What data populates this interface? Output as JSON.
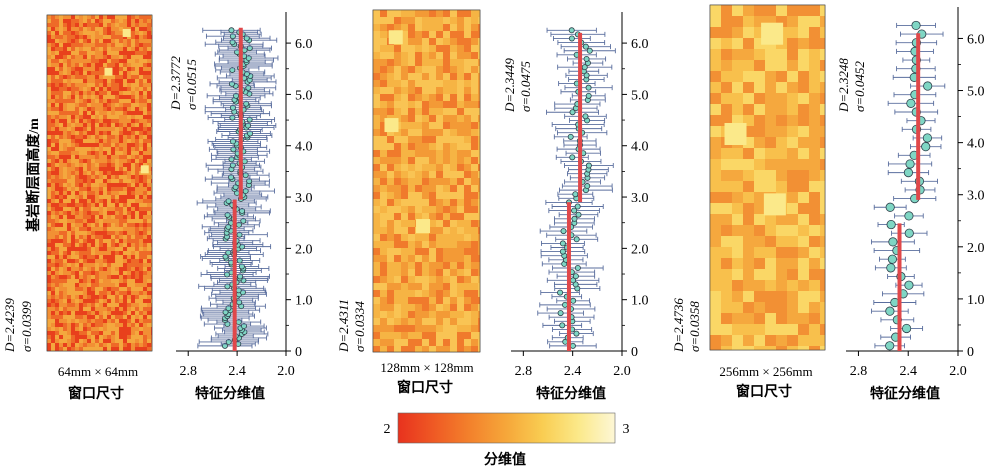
{
  "shared": {
    "y_axis_label": "基岩断层面高度/m",
    "x_axis_label": "特征分维值",
    "window_caption": "窗口尺寸",
    "x_ticks": [
      "2.8",
      "2.4",
      "2.0"
    ],
    "y_ticks": [
      "0",
      "1.0",
      "2.0",
      "3.0",
      "4.0",
      "5.0",
      "6.0"
    ]
  },
  "colorbar": {
    "min_label": "2",
    "max_label": "3",
    "title": "分维值",
    "colors": [
      "#e8321e",
      "#ef5a24",
      "#f3822c",
      "#f6a73a",
      "#f9cd52",
      "#fbe98a",
      "#fdf7d6"
    ]
  },
  "chart_data": [
    {
      "type": "scatter",
      "window_size": "64mm × 64mm",
      "map_D": "D=2.4239",
      "map_sigma": "σ=0.0399",
      "upper_D": "D=2.3772",
      "upper_sigma": "σ=0.0515",
      "xlim": [
        2.9,
        2.0
      ],
      "ylim": [
        0,
        6.45
      ],
      "mean_lower": {
        "value": 2.42,
        "y_range": [
          0,
          2.95
        ]
      },
      "mean_upper": {
        "value": 2.37,
        "y_range": [
          2.95,
          6.3
        ]
      },
      "point_count": 160,
      "error_bar": 0.22,
      "map_colors": [
        "#e8401c",
        "#ee6a28",
        "#f29034",
        "#f4a83e"
      ]
    },
    {
      "type": "scatter",
      "window_size": "128mm × 128mm",
      "map_D": "D=2.4311",
      "map_sigma": "σ=0.0334",
      "upper_D": "D=2.3449",
      "upper_sigma": "σ=0.0475",
      "xlim": [
        2.9,
        2.0
      ],
      "ylim": [
        0,
        6.45
      ],
      "mean_lower": {
        "value": 2.43,
        "y_range": [
          0,
          2.9
        ]
      },
      "mean_upper": {
        "value": 2.34,
        "y_range": [
          2.9,
          6.2
        ]
      },
      "point_count": 78,
      "error_bar": 0.2,
      "map_colors": [
        "#f07a2c",
        "#f39a36",
        "#f6b444",
        "#f9c454"
      ]
    },
    {
      "type": "scatter",
      "window_size": "256mm × 256mm",
      "map_D": "D=2.4736",
      "map_sigma": "σ=0.0358",
      "upper_D": "D=2.3248",
      "upper_sigma": "σ=0.0452",
      "xlim": [
        2.9,
        2.0
      ],
      "ylim": [
        0,
        6.45
      ],
      "mean_lower": {
        "value": 2.47,
        "y_range": [
          0,
          2.45
        ]
      },
      "mean_upper": {
        "value": 2.32,
        "y_range": [
          2.9,
          6.1
        ]
      },
      "point_count": 38,
      "error_bar": 0.17,
      "map_colors": [
        "#f29034",
        "#f5a83e",
        "#f8c04c",
        "#fad766"
      ]
    }
  ]
}
